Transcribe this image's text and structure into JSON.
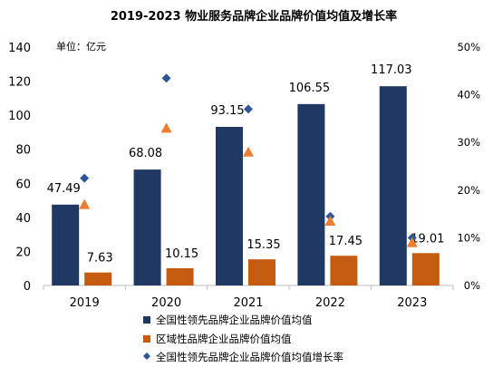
{
  "chart_data": {
    "type": "bar",
    "title": "2019-2023 物业服务品牌企业品牌价值均值及增长率",
    "unit_label": "单位：亿元",
    "categories": [
      "2019",
      "2020",
      "2021",
      "2022",
      "2023"
    ],
    "y_left": {
      "min": 0,
      "max": 140,
      "ticks": [
        "0",
        "20",
        "40",
        "60",
        "80",
        "100",
        "120",
        "140"
      ]
    },
    "y_right": {
      "min": 0,
      "max": 50,
      "ticks": [
        "0%",
        "10%",
        "20%",
        "30%",
        "40%",
        "50%"
      ]
    },
    "grid": false,
    "legend_position": "bottom",
    "series": [
      {
        "name": "全国性领先品牌企业品牌价值均值",
        "kind": "bar",
        "axis": "left",
        "color": "#1f3864",
        "values": [
          47.49,
          68.08,
          93.15,
          106.55,
          117.03
        ],
        "labels": [
          "47.49",
          "68.08",
          "93.15",
          "106.55",
          "117.03"
        ]
      },
      {
        "name": "区域性品牌企业品牌价值均值",
        "kind": "bar",
        "axis": "left",
        "color": "#c55a11",
        "values": [
          7.63,
          10.15,
          15.35,
          17.45,
          19.01
        ],
        "labels": [
          "7.63",
          "10.15",
          "15.35",
          "17.45",
          "19.01"
        ]
      },
      {
        "name": "全国性领先品牌企业品牌价值均值增长率",
        "kind": "scatter",
        "marker": "diamond",
        "axis": "right",
        "color": "#2e5597",
        "values": [
          22.5,
          43.5,
          37.0,
          14.5,
          10.0
        ]
      },
      {
        "kind": "scatter",
        "marker": "triangle",
        "axis": "right",
        "color": "#ed7d31",
        "values": [
          17.0,
          33.0,
          28.0,
          13.5,
          9.0
        ]
      }
    ]
  }
}
